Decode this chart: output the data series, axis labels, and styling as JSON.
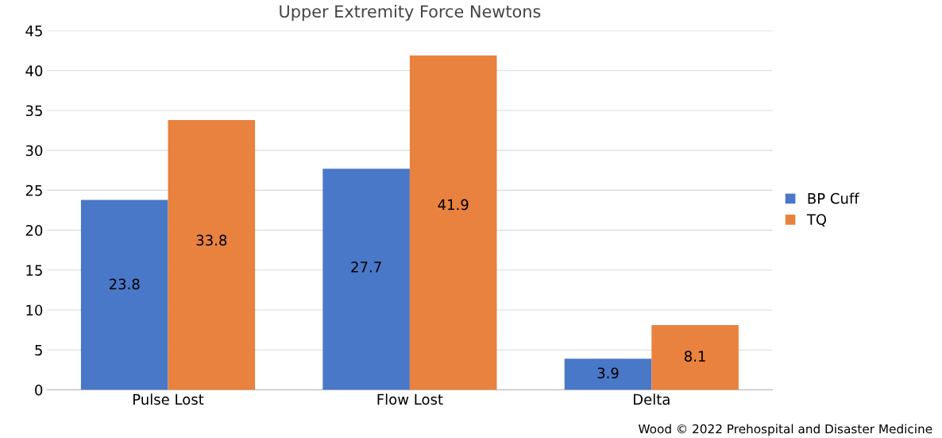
{
  "chart_data": {
    "type": "bar",
    "title": "Upper Extremity Force Newtons",
    "categories": [
      "Pulse Lost",
      "Flow Lost",
      "Delta"
    ],
    "series": [
      {
        "name": "BP Cuff",
        "color": "#4a78c8",
        "values": [
          23.8,
          27.7,
          3.9
        ]
      },
      {
        "name": "TQ",
        "color": "#e8823e",
        "values": [
          33.8,
          41.9,
          8.1
        ]
      }
    ],
    "ylim": [
      0,
      45
    ],
    "yticks": [
      0,
      5,
      10,
      15,
      20,
      25,
      30,
      35,
      40,
      45
    ],
    "grid": "y",
    "legend": "right",
    "data_labels": true,
    "annotations": [
      "Wood © 2022 Prehospital and Disaster Medicine"
    ]
  }
}
